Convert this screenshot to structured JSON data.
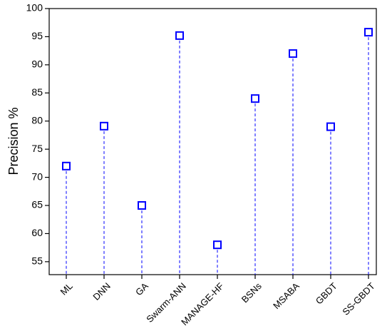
{
  "chart_data": {
    "type": "lollipop",
    "y_label": "Precision %",
    "categories": [
      "ML",
      "DNN",
      "GA",
      "Swarm-ANN",
      "MANAGE-HF",
      "BSNs",
      "MSABA",
      "GBDT",
      "SS-GBDT"
    ],
    "values": [
      72,
      79.1,
      65,
      95.2,
      58,
      84,
      92,
      79,
      95.8
    ],
    "color": "#0000ff",
    "ylim": [
      52.7,
      100
    ],
    "yticks": [
      55,
      60,
      65,
      70,
      75,
      80,
      85,
      90,
      95,
      100
    ]
  }
}
